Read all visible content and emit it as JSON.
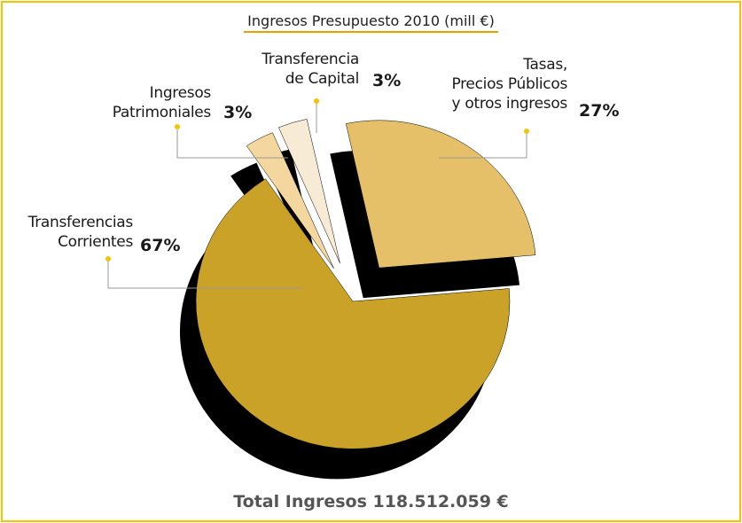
{
  "chart_data": {
    "type": "pie",
    "title": "Ingresos Presupuesto 2010 (mill €)",
    "categories": [
      "Transferencias\nCorrientes",
      "Ingresos\nPatrimoniales",
      "Transferencia\nde Capital",
      "Tasas,\nPrecios Públicos\ny otros ingresos"
    ],
    "values": [
      67,
      3,
      3,
      27
    ],
    "value_labels": [
      "67%",
      "3%",
      "3%",
      "27%"
    ],
    "colors": [
      "#c9a227",
      "#f3d79f",
      "#f8ebd6",
      "#e5c068"
    ],
    "footer": "Total Ingresos 118.512.059 €"
  }
}
